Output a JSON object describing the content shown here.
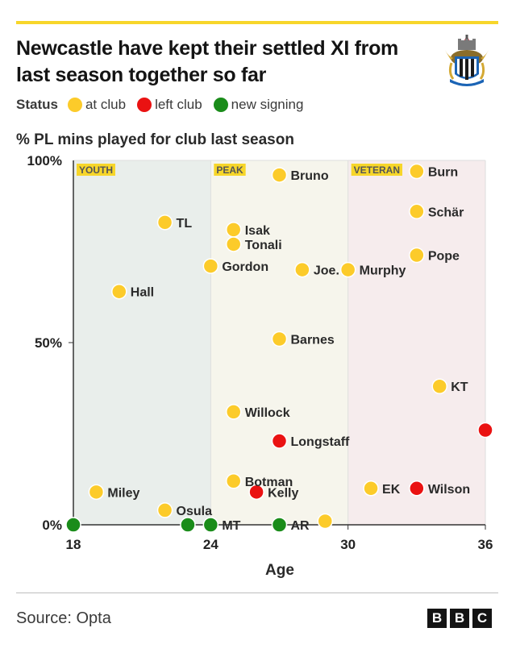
{
  "title": "Newcastle have kept their settled XI from last season together so far",
  "legend": {
    "title": "Status",
    "items": [
      {
        "label": "at club",
        "color": "#fccb2a"
      },
      {
        "label": "left club",
        "color": "#ea1212"
      },
      {
        "label": "new signing",
        "color": "#1a8c1a"
      }
    ]
  },
  "xlabel": "Age",
  "source": "Source: Opta",
  "bbc_letters": [
    "B",
    "B",
    "C"
  ],
  "chart_data": {
    "type": "scatter",
    "title": "Newcastle have kept their settled XI from last season together so far",
    "ylabel": "% PL mins played for club last season",
    "xlabel": "Age",
    "xlim": [
      18,
      36
    ],
    "ylim": [
      0,
      100
    ],
    "xticks": [
      "18",
      "24",
      "30",
      "36"
    ],
    "yticks": [
      "0%",
      "50%",
      "100%"
    ],
    "bands": [
      {
        "label": "YOUTH",
        "from": 18,
        "to": 24,
        "color": "#e9eeeb"
      },
      {
        "label": "PEAK",
        "from": 24,
        "to": 30,
        "color": "#f6f5ec"
      },
      {
        "label": "VETERAN",
        "from": 30,
        "to": 36,
        "color": "#f6eced"
      }
    ],
    "status_colors": {
      "at club": "#fccb2a",
      "left club": "#ea1212",
      "new signing": "#1a8c1a"
    },
    "points": [
      {
        "label": "Bruno",
        "age": 27,
        "pct": 96,
        "status": "at club"
      },
      {
        "label": "Burn",
        "age": 33,
        "pct": 97,
        "status": "at club"
      },
      {
        "label": "Schär",
        "age": 33,
        "pct": 86,
        "status": "at club"
      },
      {
        "label": "TL",
        "age": 22,
        "pct": 83,
        "status": "at club"
      },
      {
        "label": "Isak",
        "age": 25,
        "pct": 81,
        "status": "at club"
      },
      {
        "label": "Tonali",
        "age": 25,
        "pct": 77,
        "status": "at club"
      },
      {
        "label": "Pope",
        "age": 33,
        "pct": 74,
        "status": "at club"
      },
      {
        "label": "Gordon",
        "age": 24,
        "pct": 71,
        "status": "at club"
      },
      {
        "label": "Joe.",
        "age": 28,
        "pct": 70,
        "status": "at club"
      },
      {
        "label": "Murphy",
        "age": 30,
        "pct": 70,
        "status": "at club"
      },
      {
        "label": "Hall",
        "age": 20,
        "pct": 64,
        "status": "at club"
      },
      {
        "label": "Barnes",
        "age": 27,
        "pct": 51,
        "status": "at club"
      },
      {
        "label": "KT",
        "age": 34,
        "pct": 38,
        "status": "at club"
      },
      {
        "label": "Willock",
        "age": 25,
        "pct": 31,
        "status": "at club"
      },
      {
        "label": "Longstaff",
        "age": 27,
        "pct": 23,
        "status": "left club"
      },
      {
        "label": "",
        "age": 36,
        "pct": 26,
        "status": "left club"
      },
      {
        "label": "Botman",
        "age": 25,
        "pct": 12,
        "status": "at club"
      },
      {
        "label": "Kelly",
        "age": 26,
        "pct": 9,
        "status": "left club"
      },
      {
        "label": "Miley",
        "age": 19,
        "pct": 9,
        "status": "at club"
      },
      {
        "label": "EK",
        "age": 31,
        "pct": 10,
        "status": "at club"
      },
      {
        "label": "Wilson",
        "age": 33,
        "pct": 10,
        "status": "left club"
      },
      {
        "label": "Osula",
        "age": 22,
        "pct": 4,
        "status": "at club"
      },
      {
        "label": "",
        "age": 29,
        "pct": 1,
        "status": "at club"
      },
      {
        "label": "",
        "age": 18,
        "pct": 0,
        "status": "new signing"
      },
      {
        "label": "",
        "age": 23,
        "pct": 0,
        "status": "new signing"
      },
      {
        "label": "MT",
        "age": 24,
        "pct": 0,
        "status": "new signing"
      },
      {
        "label": "AR",
        "age": 27,
        "pct": 0,
        "status": "new signing"
      }
    ]
  }
}
